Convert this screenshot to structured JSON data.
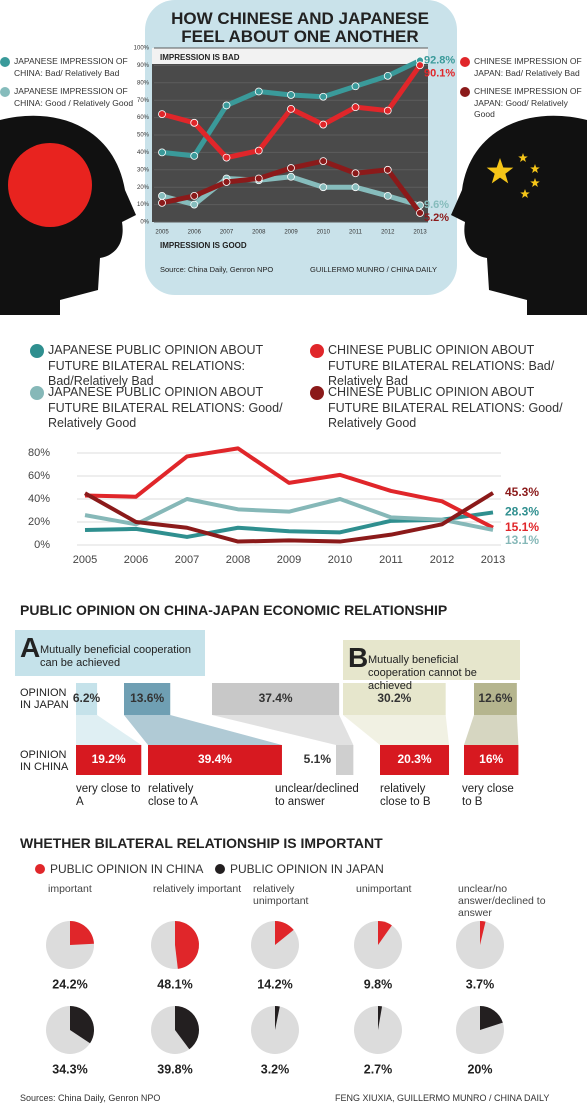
{
  "chart_data": [
    {
      "type": "line",
      "title": "HOW CHINESE AND JAPANESE FEEL ABOUT ONE ANOTHER",
      "annotations": [
        "IMPRESSION IS BAD",
        "IMPRESSION IS GOOD"
      ],
      "source": "Source: China Daily, Genron NPO",
      "credit": "GUILLERMO MUNRO / CHINA DAILY",
      "x": [
        2005,
        2006,
        2007,
        2008,
        2009,
        2010,
        2011,
        2012,
        2013
      ],
      "ylim": [
        0,
        100
      ],
      "yticks": [
        {
          "value": 0,
          "label": "0%"
        },
        {
          "value": 10,
          "label": "10%"
        },
        {
          "value": 20,
          "label": "20%"
        },
        {
          "value": 30,
          "label": "30%"
        },
        {
          "value": 40,
          "label": "40%"
        },
        {
          "value": 50,
          "label": "50%"
        },
        {
          "value": 60,
          "label": "60%"
        },
        {
          "value": 70,
          "label": "70%"
        },
        {
          "value": 80,
          "label": "80%"
        },
        {
          "value": 90,
          "label": "90%"
        },
        {
          "value": 100,
          "label": "100%"
        }
      ],
      "series": [
        {
          "name": "JAPANESE IMPRESSION OF CHINA: Bad/ Relatively Bad",
          "color": "#3a9a9a",
          "values": [
            40,
            38,
            67,
            75,
            73,
            72,
            78,
            84,
            92.8
          ],
          "value_labels": [
            null,
            null,
            null,
            null,
            null,
            null,
            null,
            null,
            "92.8%"
          ]
        },
        {
          "name": "JAPANESE IMPRESSION OF CHINA: Good / Relatively Good",
          "color": "#86bcbc",
          "values": [
            15,
            10,
            25,
            24,
            26,
            20,
            20,
            15,
            9.6
          ],
          "value_labels": [
            null,
            null,
            null,
            null,
            null,
            null,
            null,
            null,
            "9.6%"
          ]
        },
        {
          "name": "CHINESE IMPRESSION OF JAPAN: Bad/ Relatively Bad",
          "color": "#e0262a",
          "values": [
            62,
            57,
            37,
            41,
            65,
            56,
            66,
            64,
            90.1
          ],
          "value_labels": [
            null,
            null,
            null,
            null,
            null,
            null,
            null,
            null,
            "90.1%"
          ]
        },
        {
          "name": "CHINESE IMPRESSION OF JAPAN: Good/ Relatively Good",
          "color": "#8b1a1a",
          "values": [
            11,
            15,
            23,
            25,
            31,
            35,
            28,
            30,
            5.2
          ],
          "value_labels": [
            null,
            null,
            null,
            null,
            null,
            null,
            null,
            null,
            "5.2%"
          ]
        }
      ]
    },
    {
      "type": "line",
      "x": [
        2005,
        2006,
        2007,
        2008,
        2009,
        2010,
        2011,
        2012,
        2013
      ],
      "ylim": [
        0,
        90
      ],
      "yticks": [
        {
          "value": 0,
          "label": "0%"
        },
        {
          "value": 20,
          "label": "20%"
        },
        {
          "value": 40,
          "label": "40%"
        },
        {
          "value": 60,
          "label": "60%"
        },
        {
          "value": 80,
          "label": "80%"
        }
      ],
      "series": [
        {
          "name": "JAPANESE PUBLIC OPINION ABOUT FUTURE BILATERAL RELATIONS: Bad/Relatively Bad",
          "color": "#2f8f8f",
          "values": [
            13,
            14,
            7,
            15,
            12,
            11,
            21,
            22,
            28.3
          ],
          "value_labels": [
            null,
            null,
            null,
            null,
            null,
            null,
            null,
            null,
            "28.3%"
          ]
        },
        {
          "name": "CHINESE PUBLIC OPINION ABOUT FUTURE BILATERAL RELATIONS: Bad/ Relatively Bad",
          "color": "#e0262a",
          "values": [
            43,
            42,
            77,
            84,
            54,
            61,
            47,
            38,
            15.1
          ],
          "value_labels": [
            null,
            null,
            null,
            null,
            null,
            null,
            null,
            null,
            "15.1%"
          ]
        },
        {
          "name": "JAPANESE PUBLIC OPINION ABOUT FUTURE BILATERAL RELATIONS: Good/ Relatively Good",
          "color": "#86b8b8",
          "values": [
            26,
            18,
            40,
            31,
            29,
            40,
            24,
            22,
            13.1
          ],
          "value_labels": [
            null,
            null,
            null,
            null,
            null,
            null,
            null,
            null,
            "13.1%"
          ]
        },
        {
          "name": "CHINESE PUBLIC OPINION ABOUT FUTURE BILATERAL RELATIONS: Good/ Relatively Good",
          "color": "#8b1a1a",
          "values": [
            45,
            20,
            15,
            3,
            4,
            3,
            9,
            18,
            45.3
          ],
          "value_labels": [
            null,
            null,
            null,
            null,
            null,
            null,
            null,
            null,
            "45.3%"
          ]
        }
      ]
    },
    {
      "type": "bar",
      "title": "PUBLIC OPINION ON CHINA-JAPAN ECONOMIC RELATIONSHIP",
      "options": [
        {
          "letter": "A",
          "text": "Mutually beneficial cooperation can be achieved",
          "color": "#c5e2ea"
        },
        {
          "letter": "B",
          "text": "Mutually beneficial cooperation cannot be achieved",
          "color": "#e6e6cc"
        }
      ],
      "categories": [
        "very close to A",
        "relatively close to A",
        "unclear/declined to answer",
        "relatively close to B",
        "very close to B"
      ],
      "series": [
        {
          "name": "OPINION IN JAPAN",
          "colors": [
            "#c5e2ea",
            "#6f9fb3",
            "#c8c8c8",
            "#e6e6cc",
            "#b5b58e"
          ],
          "values": [
            6.2,
            13.6,
            37.4,
            30.2,
            12.6
          ],
          "value_labels": [
            "6.2%",
            "13.6%",
            "37.4%",
            "30.2%",
            "12.6%"
          ]
        },
        {
          "name": "OPINION IN CHINA",
          "colors": [
            "#d71920",
            "#d71920",
            "#cfcfcf",
            "#d71920",
            "#d71920"
          ],
          "values": [
            19.2,
            39.4,
            5.1,
            20.3,
            16
          ],
          "value_labels": [
            "19.2%",
            "39.4%",
            "5.1%",
            "20.3%",
            "16%"
          ]
        }
      ]
    },
    {
      "type": "pie",
      "title": "WHETHER BILATERAL RELATIONSHIP IS IMPORTANT",
      "categories": [
        "important",
        "relatively important",
        "relatively unimportant",
        "unimportant",
        "unclear/no answer/declined to answer"
      ],
      "series": [
        {
          "name": "PUBLIC OPINION IN CHINA",
          "color": "#e0262a",
          "values": [
            24.2,
            48.1,
            14.2,
            9.8,
            3.7
          ],
          "value_labels": [
            "24.2%",
            "48.1%",
            "14.2%",
            "9.8%",
            "3.7%"
          ]
        },
        {
          "name": "PUBLIC OPINION IN JAPAN",
          "color": "#231f20",
          "values": [
            34.3,
            39.8,
            3.2,
            2.7,
            20
          ],
          "value_labels": [
            "34.3%",
            "39.8%",
            "3.2%",
            "2.7%",
            "20%"
          ]
        }
      ],
      "source": "Sources: China Daily, Genron NPO",
      "credit": "FENG XIUXIA, GUILLERMO MUNRO / CHINA DAILY"
    }
  ]
}
